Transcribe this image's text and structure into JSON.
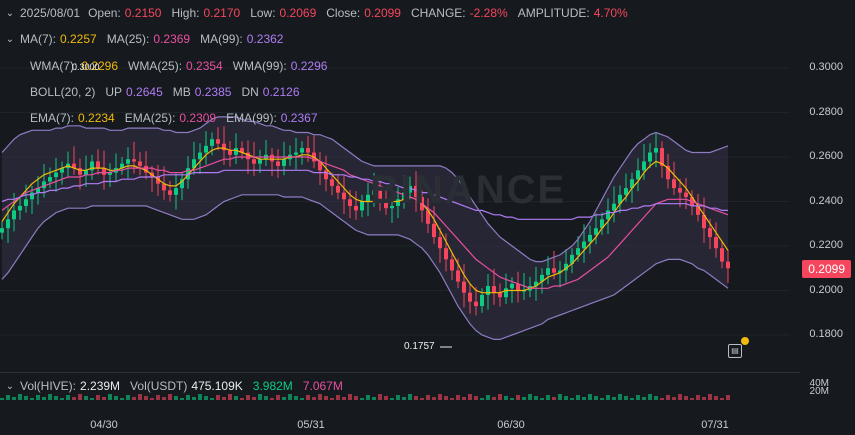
{
  "ohlc": {
    "date": "2025/08/01",
    "open_label": "Open:",
    "open": "0.2150",
    "high_label": "High:",
    "high": "0.2170",
    "low_label": "Low:",
    "low": "0.2069",
    "close_label": "Close:",
    "close": "0.2099",
    "change_label": "CHANGE:",
    "change": "-2.28%",
    "amp_label": "AMPLITUDE:",
    "amp": "4.70%"
  },
  "ma": {
    "l1": "MA(7):",
    "v1": "0.2257",
    "l2": "MA(25):",
    "v2": "0.2369",
    "l3": "MA(99):",
    "v3": "0.2362"
  },
  "wma": {
    "l1": "WMA(7):",
    "v1": "0.2296",
    "l2": "WMA(25):",
    "v2": "0.2354",
    "l3": "WMA(99):",
    "v3": "0.2296",
    "overlap": "0.3000"
  },
  "boll": {
    "l1": "BOLL(20, 2)",
    "l2": "UP",
    "v2": "0.2645",
    "l3": "MB",
    "v3": "0.2385",
    "l4": "DN",
    "v4": "0.2126"
  },
  "ema": {
    "l1": "EMA(7):",
    "v1": "0.2234",
    "l2": "EMA(25):",
    "v2": "0.2309",
    "l3": "EMA(99):",
    "v3": "0.2367"
  },
  "volume": {
    "l1": "Vol(HIVE):",
    "v1": "2.239M",
    "l2": "Vol(USDT)",
    "v2": "475.109K",
    "v3": "3.982M",
    "v4": "7.067M"
  },
  "vol_axis": [
    "40M",
    "20M"
  ],
  "current_price": "0.2099",
  "low_marker": "0.1757",
  "watermark": "BINANCE",
  "colors": {
    "up": "#0ecb81",
    "down": "#f6465d",
    "ma7": "#f0b90b",
    "ma25": "#e84fa1",
    "ma99": "#b07cf5",
    "boll": "#8e7cc3"
  },
  "chart_data": {
    "type": "line",
    "title": "",
    "xlabel": "",
    "ylabel": "",
    "y_ticks": [
      "0.3000",
      "0.2800",
      "0.2600",
      "0.2400",
      "0.2200",
      "0.2000",
      "0.1800"
    ],
    "x_ticks": [
      "04/30",
      "05/31",
      "06/30",
      "07/31"
    ],
    "ylim": [
      0.165,
      0.315
    ],
    "candles_close": [
      0.228,
      0.232,
      0.236,
      0.238,
      0.241,
      0.244,
      0.246,
      0.249,
      0.251,
      0.253,
      0.255,
      0.257,
      0.255,
      0.252,
      0.254,
      0.258,
      0.255,
      0.252,
      0.253,
      0.255,
      0.257,
      0.259,
      0.258,
      0.256,
      0.253,
      0.251,
      0.248,
      0.245,
      0.243,
      0.246,
      0.25,
      0.255,
      0.259,
      0.262,
      0.265,
      0.268,
      0.266,
      0.263,
      0.261,
      0.264,
      0.262,
      0.259,
      0.257,
      0.259,
      0.261,
      0.258,
      0.256,
      0.259,
      0.261,
      0.262,
      0.264,
      0.262,
      0.258,
      0.254,
      0.25,
      0.247,
      0.244,
      0.241,
      0.238,
      0.236,
      0.24,
      0.243,
      0.245,
      0.24,
      0.237,
      0.238,
      0.241,
      0.244,
      0.247,
      0.242,
      0.236,
      0.23,
      0.224,
      0.219,
      0.214,
      0.209,
      0.204,
      0.199,
      0.195,
      0.193,
      0.198,
      0.202,
      0.199,
      0.197,
      0.201,
      0.203,
      0.2,
      0.2,
      0.202,
      0.204,
      0.207,
      0.21,
      0.208,
      0.209,
      0.212,
      0.216,
      0.219,
      0.222,
      0.225,
      0.228,
      0.232,
      0.236,
      0.239,
      0.243,
      0.246,
      0.25,
      0.254,
      0.258,
      0.262,
      0.264,
      0.256,
      0.25,
      0.246,
      0.244,
      0.242,
      0.238,
      0.234,
      0.228,
      0.224,
      0.219,
      0.213,
      0.21
    ],
    "series": [
      {
        "name": "MA(7)",
        "values": [
          0.231,
          0.235,
          0.239,
          0.242,
          0.245,
          0.248,
          0.25,
          0.252,
          0.253,
          0.254,
          0.255,
          0.256,
          0.255,
          0.254,
          0.254,
          0.255,
          0.255,
          0.255,
          0.254,
          0.254,
          0.255,
          0.256,
          0.256,
          0.255,
          0.254,
          0.252,
          0.25,
          0.248,
          0.247,
          0.247,
          0.249,
          0.252,
          0.255,
          0.258,
          0.261,
          0.263,
          0.264,
          0.264,
          0.263,
          0.263,
          0.262,
          0.261,
          0.26,
          0.259,
          0.259,
          0.259,
          0.259,
          0.259,
          0.26,
          0.26,
          0.261,
          0.261,
          0.26,
          0.258,
          0.255,
          0.252,
          0.249,
          0.246,
          0.243,
          0.241,
          0.24,
          0.24,
          0.24,
          0.24,
          0.24,
          0.24,
          0.24,
          0.241,
          0.242,
          0.241,
          0.239,
          0.236,
          0.232,
          0.227,
          0.222,
          0.217,
          0.212,
          0.207,
          0.203,
          0.2,
          0.199,
          0.199,
          0.199,
          0.199,
          0.2,
          0.2,
          0.2,
          0.2,
          0.201,
          0.202,
          0.204,
          0.206,
          0.207,
          0.208,
          0.21,
          0.212,
          0.215,
          0.218,
          0.221,
          0.224,
          0.228,
          0.231,
          0.235,
          0.239,
          0.242,
          0.246,
          0.249,
          0.253,
          0.256,
          0.258,
          0.257,
          0.255,
          0.252,
          0.249,
          0.246,
          0.242,
          0.238,
          0.234,
          0.23,
          0.226,
          0.222,
          0.218
        ]
      },
      {
        "name": "MA(25)",
        "values": [
          0.236,
          0.238,
          0.24,
          0.242,
          0.244,
          0.245,
          0.246,
          0.247,
          0.248,
          0.249,
          0.25,
          0.251,
          0.251,
          0.251,
          0.252,
          0.252,
          0.253,
          0.253,
          0.253,
          0.254,
          0.254,
          0.255,
          0.255,
          0.255,
          0.255,
          0.255,
          0.254,
          0.254,
          0.253,
          0.253,
          0.253,
          0.254,
          0.254,
          0.255,
          0.256,
          0.257,
          0.258,
          0.259,
          0.259,
          0.26,
          0.26,
          0.26,
          0.26,
          0.26,
          0.26,
          0.26,
          0.26,
          0.26,
          0.26,
          0.26,
          0.26,
          0.26,
          0.259,
          0.258,
          0.257,
          0.256,
          0.255,
          0.254,
          0.252,
          0.251,
          0.25,
          0.249,
          0.248,
          0.247,
          0.246,
          0.245,
          0.244,
          0.243,
          0.242,
          0.241,
          0.239,
          0.237,
          0.235,
          0.232,
          0.229,
          0.226,
          0.223,
          0.22,
          0.217,
          0.214,
          0.212,
          0.21,
          0.208,
          0.206,
          0.205,
          0.204,
          0.203,
          0.202,
          0.201,
          0.201,
          0.201,
          0.201,
          0.202,
          0.202,
          0.203,
          0.204,
          0.205,
          0.207,
          0.209,
          0.211,
          0.213,
          0.215,
          0.218,
          0.221,
          0.224,
          0.227,
          0.23,
          0.233,
          0.236,
          0.239,
          0.24,
          0.241,
          0.241,
          0.241,
          0.241,
          0.24,
          0.239,
          0.238,
          0.237,
          0.236,
          0.235,
          0.234
        ]
      },
      {
        "name": "MA(99)",
        "values": [
          0.24,
          0.241,
          0.241,
          0.242,
          0.243,
          0.243,
          0.244,
          0.244,
          0.245,
          0.245,
          0.246,
          0.246,
          0.247,
          0.247,
          0.248,
          0.248,
          0.248,
          0.249,
          0.249,
          0.249,
          0.25,
          0.25,
          0.25,
          0.251,
          0.251,
          0.251,
          0.251,
          0.252,
          0.252,
          0.252,
          0.252,
          0.252,
          0.253,
          0.253,
          0.253,
          0.253,
          0.253,
          0.254,
          0.254,
          0.254,
          0.254,
          0.254,
          0.254,
          0.254,
          0.254,
          0.254,
          0.254,
          0.254,
          0.254,
          0.254,
          0.254,
          0.254,
          0.253,
          0.253,
          0.253,
          0.252,
          0.252,
          0.252,
          0.251,
          0.251,
          0.25,
          0.25,
          0.249,
          0.249,
          0.248,
          0.248,
          0.247,
          0.246,
          0.246,
          0.245,
          0.244,
          0.244,
          0.243,
          0.242,
          0.241,
          0.24,
          0.239,
          0.238,
          0.237,
          0.236,
          0.236,
          0.235,
          0.234,
          0.234,
          0.233,
          0.233,
          0.232,
          0.232,
          0.232,
          0.232,
          0.232,
          0.232,
          0.232,
          0.232,
          0.232,
          0.232,
          0.233,
          0.233,
          0.233,
          0.234,
          0.234,
          0.235,
          0.235,
          0.236,
          0.236,
          0.237,
          0.237,
          0.238,
          0.238,
          0.239,
          0.239,
          0.239,
          0.239,
          0.239,
          0.239,
          0.238,
          0.238,
          0.238,
          0.237,
          0.237,
          0.236,
          0.236
        ]
      },
      {
        "name": "BOLL UP",
        "values": [
          0.262,
          0.265,
          0.268,
          0.27,
          0.271,
          0.272,
          0.272,
          0.272,
          0.272,
          0.273,
          0.273,
          0.274,
          0.274,
          0.274,
          0.273,
          0.273,
          0.273,
          0.273,
          0.272,
          0.272,
          0.272,
          0.273,
          0.273,
          0.273,
          0.273,
          0.273,
          0.273,
          0.272,
          0.272,
          0.271,
          0.271,
          0.271,
          0.272,
          0.273,
          0.275,
          0.277,
          0.278,
          0.278,
          0.278,
          0.278,
          0.277,
          0.276,
          0.276,
          0.275,
          0.274,
          0.274,
          0.273,
          0.272,
          0.272,
          0.271,
          0.271,
          0.271,
          0.27,
          0.27,
          0.269,
          0.268,
          0.266,
          0.264,
          0.262,
          0.26,
          0.258,
          0.257,
          0.256,
          0.256,
          0.256,
          0.256,
          0.256,
          0.256,
          0.256,
          0.256,
          0.256,
          0.256,
          0.256,
          0.256,
          0.255,
          0.253,
          0.25,
          0.246,
          0.242,
          0.238,
          0.234,
          0.23,
          0.227,
          0.224,
          0.222,
          0.22,
          0.218,
          0.216,
          0.214,
          0.213,
          0.213,
          0.214,
          0.215,
          0.216,
          0.218,
          0.22,
          0.223,
          0.227,
          0.231,
          0.236,
          0.241,
          0.246,
          0.251,
          0.255,
          0.259,
          0.263,
          0.266,
          0.268,
          0.27,
          0.271,
          0.27,
          0.269,
          0.267,
          0.265,
          0.263,
          0.262,
          0.262,
          0.262,
          0.262,
          0.263,
          0.264,
          0.265
        ]
      },
      {
        "name": "BOLL DN",
        "values": [
          0.205,
          0.208,
          0.212,
          0.216,
          0.22,
          0.224,
          0.228,
          0.231,
          0.233,
          0.235,
          0.236,
          0.237,
          0.237,
          0.237,
          0.237,
          0.238,
          0.238,
          0.238,
          0.238,
          0.238,
          0.238,
          0.238,
          0.238,
          0.238,
          0.238,
          0.237,
          0.236,
          0.235,
          0.234,
          0.233,
          0.232,
          0.232,
          0.232,
          0.233,
          0.234,
          0.236,
          0.238,
          0.24,
          0.241,
          0.242,
          0.243,
          0.243,
          0.243,
          0.243,
          0.243,
          0.243,
          0.243,
          0.242,
          0.242,
          0.242,
          0.242,
          0.241,
          0.24,
          0.239,
          0.237,
          0.235,
          0.233,
          0.231,
          0.229,
          0.227,
          0.226,
          0.225,
          0.225,
          0.225,
          0.225,
          0.225,
          0.225,
          0.224,
          0.223,
          0.221,
          0.219,
          0.216,
          0.212,
          0.208,
          0.203,
          0.198,
          0.193,
          0.189,
          0.185,
          0.182,
          0.18,
          0.179,
          0.178,
          0.178,
          0.179,
          0.18,
          0.181,
          0.182,
          0.183,
          0.184,
          0.185,
          0.187,
          0.188,
          0.189,
          0.19,
          0.191,
          0.192,
          0.193,
          0.194,
          0.195,
          0.196,
          0.197,
          0.198,
          0.2,
          0.202,
          0.204,
          0.206,
          0.208,
          0.21,
          0.212,
          0.213,
          0.214,
          0.214,
          0.214,
          0.213,
          0.212,
          0.21,
          0.209,
          0.207,
          0.205,
          0.203,
          0.201
        ]
      }
    ]
  }
}
